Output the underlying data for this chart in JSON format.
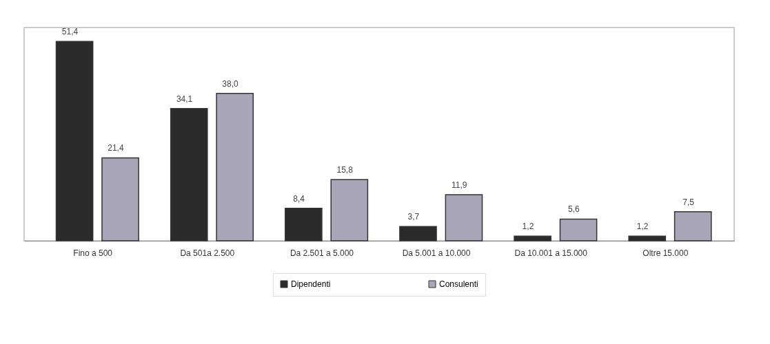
{
  "chart_data": {
    "type": "bar",
    "categories": [
      "Fino a 500",
      "Da 501a 2.500",
      "Da 2.501 a 5.000",
      "Da 5.001 a 10.000",
      "Da 10.001 a 15.000",
      "Oltre 15.000"
    ],
    "legend": "bottom",
    "series": [
      {
        "name": "Dipendenti",
        "color": "#2b2b2b",
        "values": [
          51.4,
          34.1,
          8.4,
          3.7,
          1.2,
          1.2
        ],
        "value_labels": [
          "51,4",
          "34,1",
          "8,4",
          "3,7",
          "1,2",
          "1,2"
        ]
      },
      {
        "name": "Consulenti",
        "color": "#aaa6b9",
        "values": [
          21.4,
          38.0,
          15.8,
          11.9,
          5.6,
          7.5
        ],
        "value_labels": [
          "21,4",
          "38,0",
          "15,8",
          "11,9",
          "5,6",
          "7,5"
        ]
      }
    ]
  }
}
